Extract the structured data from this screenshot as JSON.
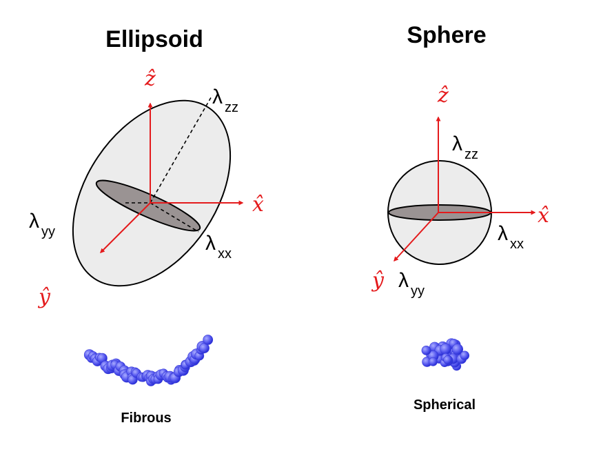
{
  "colors": {
    "axis": "#e41a1c",
    "shape_fill": "#ececec",
    "section_fill": "#9a9393",
    "outline": "#000000",
    "bead_fill": "#5a5cf0",
    "bead_dark": "#2a2fd6",
    "bead_light": "#9ea2ff"
  },
  "ellipsoid": {
    "title": "Ellipsoid",
    "axes": {
      "x": "x̂",
      "y": "ŷ",
      "z": "ẑ"
    },
    "lambdas": {
      "zz": {
        "symbol": "λ",
        "sub": "zz"
      },
      "yy": {
        "symbol": "λ",
        "sub": "yy"
      },
      "xx": {
        "symbol": "λ",
        "sub": "xx"
      }
    },
    "molecule_icon": "fibrous-protein-icon",
    "caption": "Fibrous"
  },
  "sphere": {
    "title": "Sphere",
    "axes": {
      "x": "x̂",
      "y": "ŷ",
      "z": "ẑ"
    },
    "lambdas": {
      "zz": {
        "symbol": "λ",
        "sub": "zz"
      },
      "xx": {
        "symbol": "λ",
        "sub": "xx"
      },
      "yy": {
        "symbol": "λ",
        "sub": "yy"
      }
    },
    "molecule_icon": "spherical-protein-icon",
    "caption": "Spherical"
  }
}
